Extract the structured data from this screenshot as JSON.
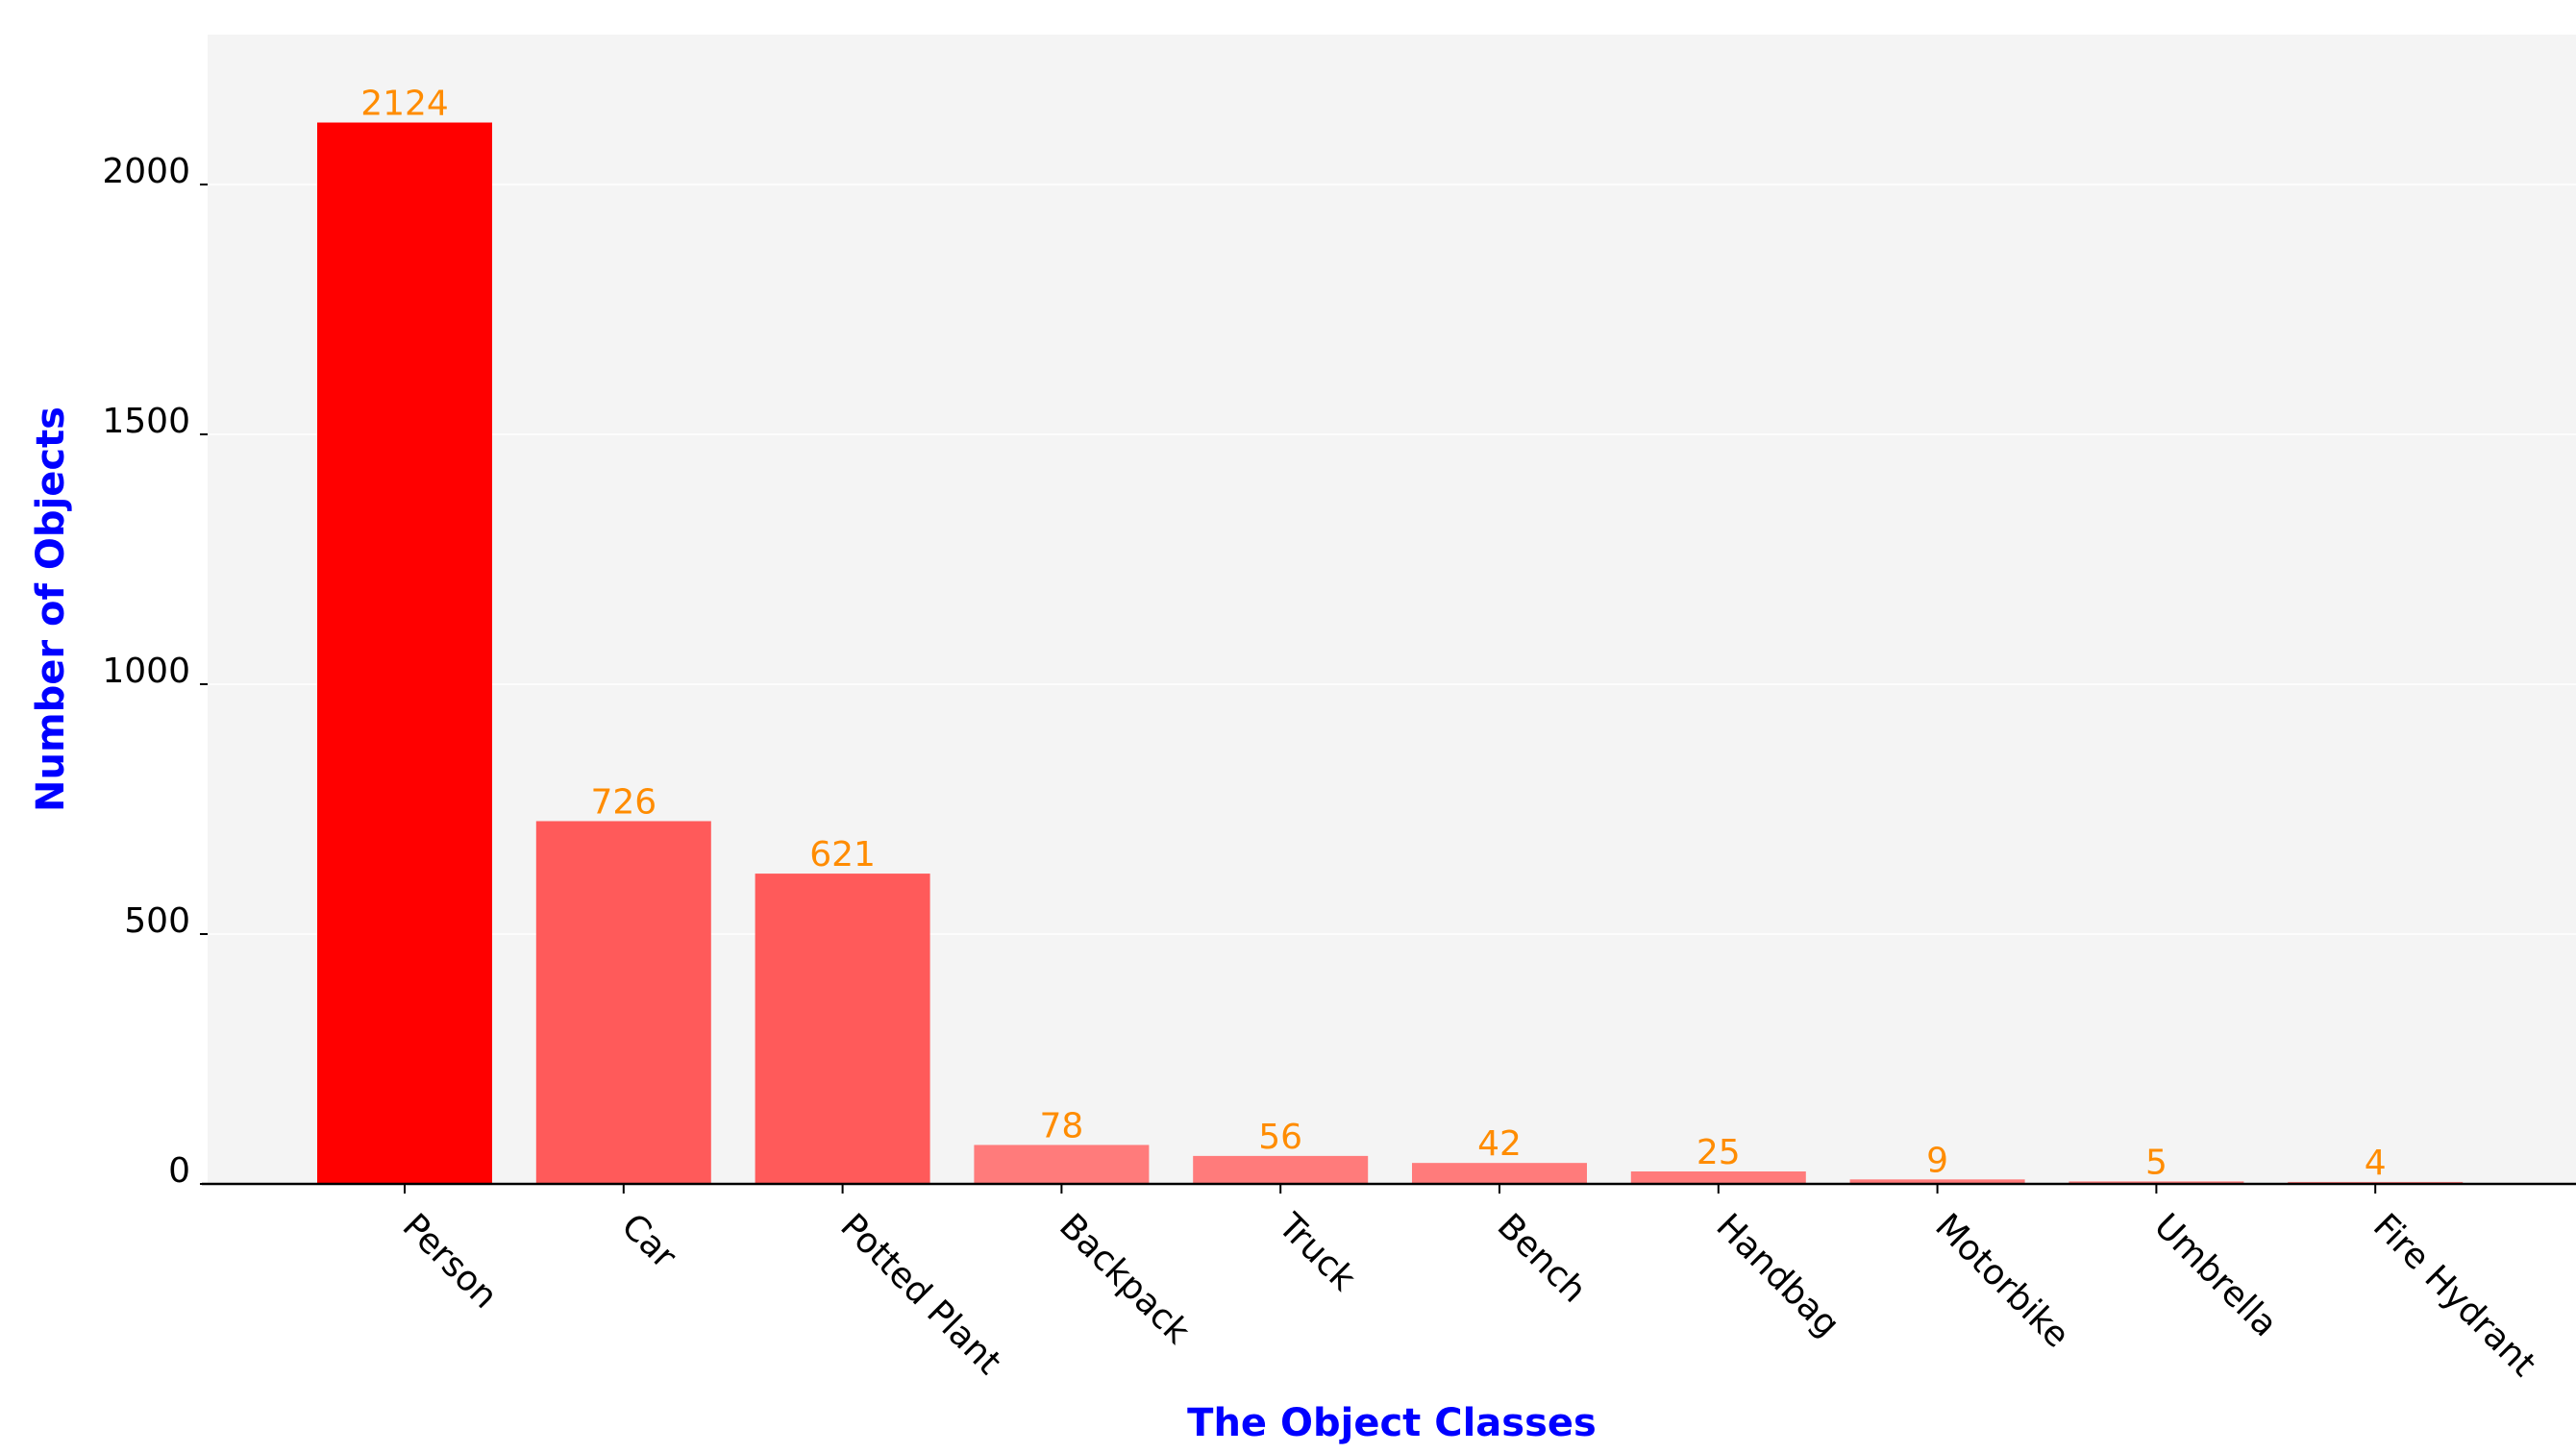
{
  "chart_data": {
    "type": "bar",
    "title": "",
    "xlabel": "The Object Classes",
    "ylabel": "Number of Objects",
    "categories": [
      "Person",
      "Car",
      "Potted Plant",
      "Backpack",
      "Truck",
      "Bench",
      "Handbag",
      "Motorbike",
      "Umbrella",
      "Fire Hydrant"
    ],
    "values": [
      2124,
      726,
      621,
      78,
      56,
      42,
      25,
      9,
      5,
      4
    ],
    "data_labels": [
      "2124",
      "726",
      "621",
      "78",
      "56",
      "42",
      "25",
      "9",
      "5",
      "4"
    ],
    "bar_colors": [
      "#ff0000",
      "#ff5a5a",
      "#ff5a5a",
      "#ff7b7b",
      "#ff7b7b",
      "#ff7b7b",
      "#ff7b7b",
      "#ff7b7b",
      "#ff7b7b",
      "#ff7b7b"
    ],
    "ylim": [
      0,
      2300
    ],
    "yticks": [
      0,
      500,
      1000,
      1500,
      2000
    ],
    "ytick_labels": [
      "0",
      "500",
      "1000",
      "1500",
      "2000"
    ],
    "grid": true,
    "legend": "none",
    "colors": {
      "background": "#f4f4f4",
      "axis_title": "#0000ff",
      "data_label": "#ff8c00",
      "grid": "#ffffff",
      "axis_line": "#000000"
    }
  }
}
